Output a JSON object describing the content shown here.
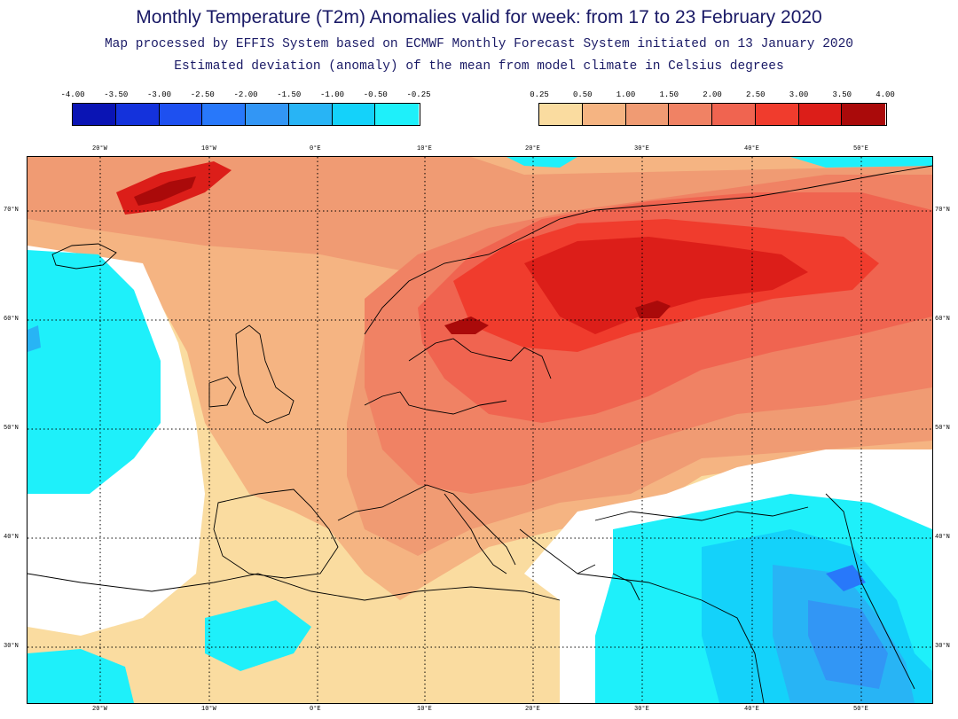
{
  "header": {
    "title": "Monthly Temperature (T2m) Anomalies valid for week: from 17 to 23 February 2020",
    "subtitle1": "Map processed by EFFIS System based on ECMWF Monthly Forecast System initiated on 13 January 2020",
    "subtitle2": "Estimated deviation (anomaly) of the mean from model climate in Celsius degrees"
  },
  "legend": {
    "cold": {
      "labels": [
        "-4.00",
        "-3.50",
        "-3.00",
        "-2.50",
        "-2.00",
        "-1.50",
        "-1.00",
        "-0.50",
        "-0.25"
      ],
      "colors": [
        "#0a14b4",
        "#1432dc",
        "#1e50f0",
        "#2878fa",
        "#3296f5",
        "#28b4f5",
        "#14d2fa",
        "#1ef0fa"
      ]
    },
    "warm": {
      "labels": [
        "0.25",
        "0.50",
        "1.00",
        "1.50",
        "2.00",
        "2.50",
        "3.00",
        "3.50",
        "4.00"
      ],
      "colors": [
        "#fadca0",
        "#f5b482",
        "#f09b73",
        "#f08264",
        "#f06450",
        "#f03c2d",
        "#dc1e19",
        "#aa0a0a"
      ]
    }
  },
  "map": {
    "lon_labels": [
      "20°W",
      "10°W",
      "0°E",
      "10°E",
      "20°E",
      "30°E",
      "40°E",
      "50°E"
    ],
    "lat_labels": [
      "70°N",
      "60°N",
      "50°N",
      "40°N",
      "30°N"
    ]
  }
}
